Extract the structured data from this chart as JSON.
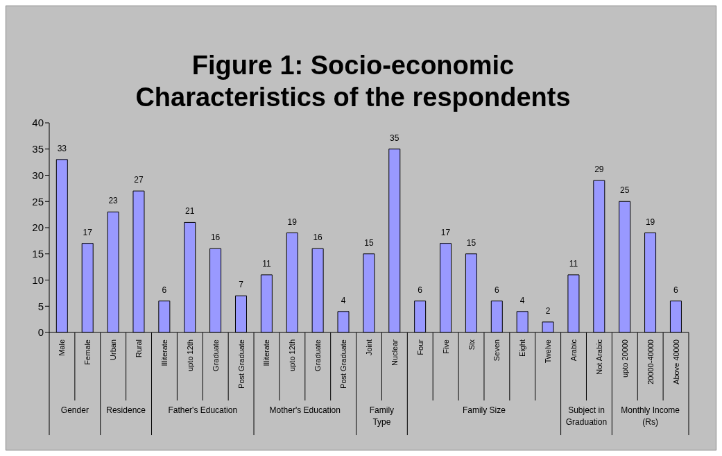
{
  "chart_data": {
    "type": "bar",
    "title": "Figure 1: Socio-economic Characteristics of the respondents",
    "categories": [
      "Male",
      "Female",
      "Urban",
      "Rural",
      "Illiterate",
      "upto 12th",
      "Graduate",
      "Post Graduate",
      "Illiterate",
      "upto 12th",
      "Graduate",
      "Post Graduate",
      "Joint",
      "Nuclear",
      "Four",
      "Five",
      "Six",
      "Seven",
      "Eight",
      "Twelve",
      "Arabic",
      "Not Arabic",
      "upto 20000",
      "20000-40000",
      "Above 40000"
    ],
    "values": [
      33,
      17,
      23,
      27,
      6,
      21,
      16,
      7,
      11,
      19,
      16,
      4,
      15,
      35,
      6,
      17,
      15,
      6,
      4,
      2,
      11,
      29,
      25,
      19,
      6
    ],
    "color": "#9999ff",
    "ylim": [
      0,
      40
    ],
    "yticks": [
      0,
      5,
      10,
      15,
      20,
      25,
      30,
      35,
      40
    ],
    "data_labels": true,
    "grid": false,
    "legend": false,
    "annotations": [
      "Gender",
      "Residence",
      "Father's Education",
      "Mother's Education",
      "Family Type",
      "Family Size",
      "Subject in Graduation",
      "Monthly Income (Rs)"
    ]
  }
}
